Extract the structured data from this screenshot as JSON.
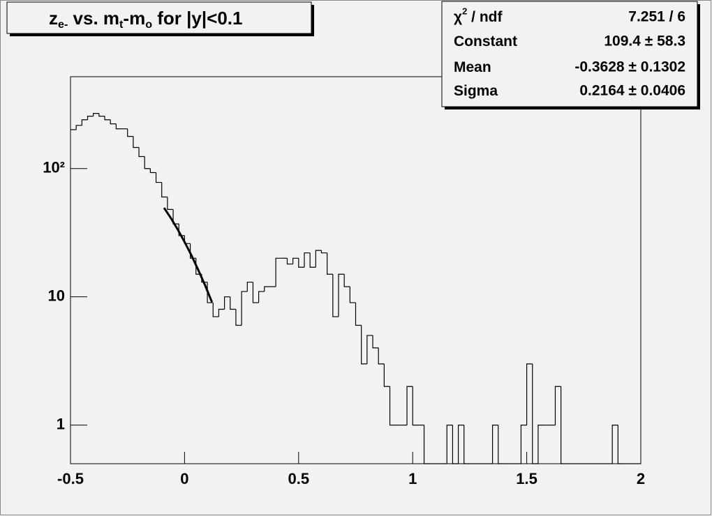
{
  "chart_data": {
    "type": "histogram",
    "title": [
      {
        "text": "z"
      },
      {
        "text": "e-",
        "sub": true
      },
      {
        "text": " vs. m"
      },
      {
        "text": "t",
        "sub": true
      },
      {
        "text": "-m"
      },
      {
        "text": "o",
        "sub": true
      },
      {
        "text": " for |y|<0.1"
      }
    ],
    "bins": [
      -0.5,
      -0.475,
      -0.45,
      -0.425,
      -0.4,
      -0.375,
      -0.35,
      -0.325,
      -0.3,
      -0.275,
      -0.25,
      -0.225,
      -0.2,
      -0.175,
      -0.15,
      -0.125,
      -0.1,
      -0.075,
      -0.05,
      -0.025,
      0,
      0.025,
      0.05,
      0.075,
      0.1,
      0.125,
      0.15,
      0.175,
      0.2,
      0.225,
      0.25,
      0.275,
      0.3,
      0.325,
      0.35,
      0.375,
      0.4,
      0.425,
      0.45,
      0.475,
      0.5,
      0.525,
      0.55,
      0.575,
      0.6,
      0.625,
      0.65,
      0.675,
      0.7,
      0.725,
      0.75,
      0.775,
      0.8,
      0.825,
      0.85,
      0.875,
      0.9,
      0.925,
      0.95,
      0.975,
      1,
      1.025,
      1.05,
      1.075,
      1.1,
      1.125,
      1.15,
      1.175,
      1.2,
      1.225,
      1.25,
      1.275,
      1.3,
      1.325,
      1.35,
      1.375,
      1.4,
      1.425,
      1.45,
      1.475,
      1.5,
      1.525,
      1.55,
      1.575,
      1.6,
      1.625,
      1.65,
      1.675,
      1.7,
      1.725,
      1.75,
      1.775,
      1.8,
      1.825,
      1.85,
      1.875,
      1.9,
      1.925,
      1.95,
      1.975,
      2
    ],
    "values": [
      201,
      217,
      240,
      256,
      269,
      256,
      240,
      223,
      204,
      204,
      178,
      146,
      124,
      100,
      93,
      78,
      60,
      48,
      37,
      30,
      26,
      20,
      15,
      13,
      9,
      7,
      8,
      10,
      8,
      6,
      11,
      13,
      9,
      11,
      12,
      12,
      20,
      20,
      18,
      20,
      17,
      22,
      17,
      23,
      22,
      15,
      7,
      15,
      12,
      9,
      6,
      3,
      5,
      4,
      3,
      2,
      1,
      1,
      1,
      2,
      1,
      1,
      0,
      0,
      0,
      0,
      1,
      0,
      1,
      0,
      0,
      0,
      0,
      0,
      1,
      0,
      0,
      0,
      0,
      1,
      3,
      0,
      1,
      1,
      1,
      2,
      0,
      0,
      0,
      0,
      0,
      0,
      0,
      0,
      0,
      1,
      0,
      0,
      0,
      0
    ],
    "color": "#000000",
    "fit": {
      "x": [
        -0.09,
        -0.06,
        -0.03,
        0,
        0.03,
        0.06,
        0.09,
        0.12
      ],
      "values": [
        49.4,
        41.1,
        33.5,
        26.8,
        21.1,
        16.2,
        12.3,
        9.1
      ],
      "color": "#000000"
    },
    "xlim": [
      -0.5,
      2
    ],
    "xticks": [
      -0.5,
      0,
      0.5,
      1,
      1.5,
      2
    ],
    "ylim": [
      0.5,
      520
    ],
    "yticks": [
      1,
      10,
      {
        "value": 100,
        "label": "10²"
      }
    ],
    "log_y": true,
    "stats": [
      {
        "label": [
          {
            "text": "χ"
          },
          {
            "text": "2",
            "sup": true
          },
          {
            "text": " / ndf"
          }
        ],
        "value": "7.251 / 6"
      },
      {
        "label": [
          {
            "text": "Constant"
          }
        ],
        "value": "109.4 ± 58.3"
      },
      {
        "label": [
          {
            "text": "Mean"
          }
        ],
        "value": "-0.3628 ± 0.1302"
      },
      {
        "label": [
          {
            "text": "Sigma"
          }
        ],
        "value": "0.2164 ± 0.0406"
      }
    ]
  }
}
